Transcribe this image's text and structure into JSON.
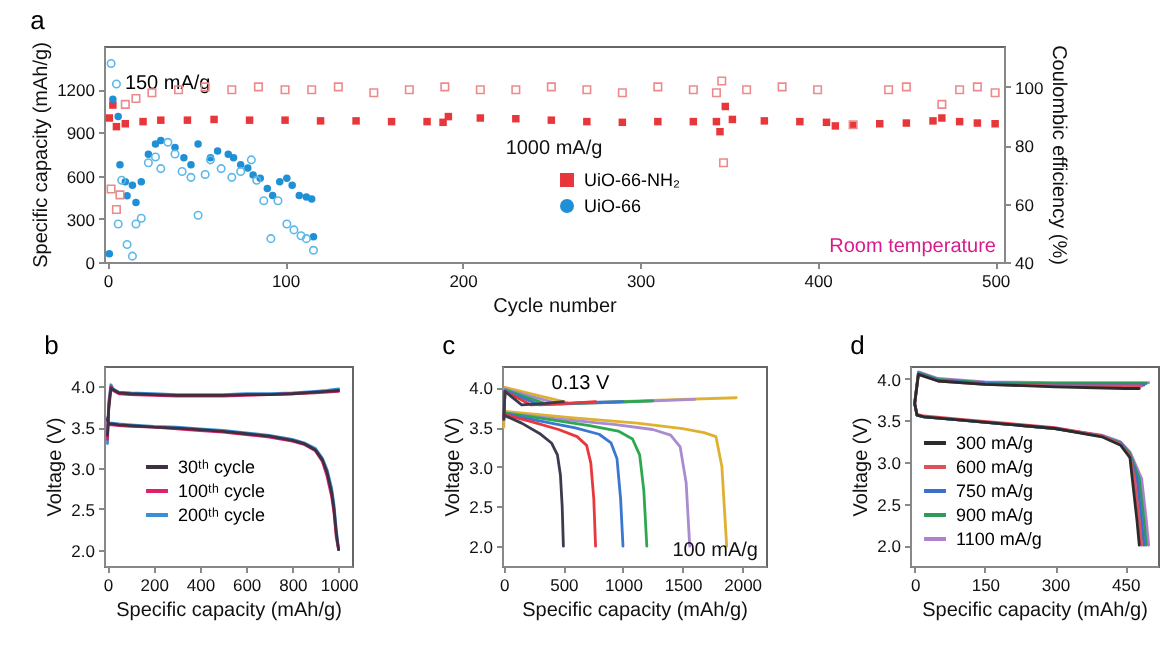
{
  "chart_data": [
    {
      "type": "scatter",
      "title": "a",
      "xlabel": "Cycle number",
      "ylabel": "Specific capacity (mAh/g)",
      "y2label": "Coulombic efficiency (%)",
      "xlim": [
        -2,
        505
      ],
      "xticks": [
        0,
        100,
        200,
        300,
        400,
        500
      ],
      "ylim": [
        0,
        1500
      ],
      "yticks": [
        0,
        300,
        600,
        900,
        1200
      ],
      "y2lim": [
        40,
        114
      ],
      "y2ticks": [
        40,
        60,
        80,
        100
      ],
      "legend": "center",
      "annotations": [
        {
          "text": "150 mA/g",
          "x": 3,
          "y": 1090
        },
        "1000 mA/g",
        "Room temperature"
      ],
      "series": [
        {
          "name": "UiO-66-NH₂",
          "color": "#e8373a",
          "marker": "square",
          "x": [
            1,
            3,
            5,
            10,
            20,
            30,
            45,
            60,
            80,
            100,
            120,
            140,
            160,
            180,
            189,
            192,
            210,
            230,
            250,
            270,
            290,
            310,
            330,
            343,
            345,
            348,
            352,
            370,
            390,
            405,
            410,
            420,
            435,
            450,
            465,
            470,
            480,
            490,
            500
          ],
          "values": [
            1000,
            1090,
            940,
            960,
            975,
            985,
            985,
            990,
            985,
            985,
            980,
            980,
            975,
            975,
            970,
            1010,
            1000,
            995,
            985,
            975,
            970,
            975,
            975,
            975,
            905,
            1080,
            990,
            980,
            975,
            970,
            945,
            950,
            960,
            965,
            980,
            1000,
            975,
            965,
            960
          ]
        },
        {
          "color": "#ec8a8c",
          "marker": "square",
          "axis": "y2",
          "x": [
            2,
            5,
            7,
            10,
            16,
            25,
            40,
            55,
            70,
            85,
            100,
            115,
            130,
            150,
            170,
            190,
            210,
            230,
            250,
            270,
            290,
            310,
            330,
            343,
            346,
            347,
            360,
            380,
            400,
            420,
            440,
            450,
            470,
            480,
            490,
            500
          ],
          "values": [
            65,
            58,
            63,
            94,
            96,
            98,
            99,
            100,
            99,
            100,
            99,
            99,
            100,
            98,
            99,
            100,
            99,
            99,
            100,
            99,
            98,
            100,
            99,
            98,
            102,
            74,
            99,
            100,
            99,
            87,
            99,
            100,
            94,
            99,
            100,
            98
          ]
        },
        {
          "name": "UiO-66",
          "color": "#1f8fd6",
          "marker": "circle",
          "x": [
            1,
            3,
            6,
            7,
            10,
            11,
            14,
            16,
            19,
            23,
            27,
            30,
            38,
            43,
            47,
            51,
            58,
            62,
            68,
            71,
            75,
            79,
            82,
            86,
            90,
            93,
            97,
            101,
            104,
            108,
            112,
            115,
            116
          ],
          "values": [
            57,
            1130,
            1010,
            676,
            557,
            460,
            533,
            414,
            557,
            748,
            819,
            843,
            795,
            724,
            676,
            819,
            724,
            771,
            748,
            724,
            676,
            652,
            605,
            581,
            510,
            462,
            557,
            581,
            533,
            462,
            452,
            438,
            176
          ]
        },
        {
          "color": "#5cb8e8",
          "marker": "circle",
          "axis": "y2",
          "x": [
            2,
            5,
            6,
            8,
            11,
            14,
            16,
            19,
            23,
            27,
            30,
            34,
            38,
            42,
            47,
            51,
            55,
            58,
            64,
            70,
            75,
            81,
            84,
            88,
            92,
            96,
            101,
            105,
            109,
            112,
            116
          ],
          "values": [
            108,
            101,
            53,
            68,
            46,
            42,
            53,
            55,
            74,
            76,
            72,
            81,
            77,
            71,
            69,
            56,
            70,
            75,
            72,
            69,
            71,
            75,
            68,
            61,
            48,
            61,
            53,
            51,
            49,
            48,
            44
          ]
        }
      ]
    },
    {
      "type": "line",
      "title": "b",
      "xlabel": "Specific capacity (mAh/g)",
      "ylabel": "Voltage (V)",
      "xlim": [
        -15,
        1058
      ],
      "xticks": [
        0,
        200,
        400,
        600,
        800,
        1000
      ],
      "ylim": [
        1.8,
        4.25
      ],
      "yticks": [
        {
          "value": 2,
          "label": "2.0"
        },
        2.5,
        {
          "value": 3,
          "label": "3.0"
        },
        3.5,
        {
          "value": 4,
          "label": "4.0"
        }
      ],
      "legend": "bottom left",
      "x": [
        0,
        5,
        15,
        25,
        50,
        100,
        200,
        300,
        400,
        500,
        600,
        700,
        800,
        900,
        950,
        1000,
        null,
        0,
        5,
        10,
        20,
        50,
        100,
        200,
        300,
        400,
        500,
        600,
        700,
        800,
        850,
        900,
        930,
        950,
        970,
        980,
        990,
        1000
      ],
      "series": [
        {
          "name": "30ᵗʰ cycle",
          "color": "#3d3040",
          "values": [
            3.4,
            3.7,
            3.98,
            3.96,
            3.92,
            3.91,
            3.9,
            3.89,
            3.89,
            3.89,
            3.9,
            3.9,
            3.91,
            3.93,
            3.94,
            3.95,
            null,
            3.6,
            3.55,
            3.54,
            3.54,
            3.53,
            3.52,
            3.5,
            3.49,
            3.47,
            3.45,
            3.42,
            3.39,
            3.34,
            3.3,
            3.22,
            3.1,
            2.95,
            2.7,
            2.5,
            2.2,
            2.0
          ]
        },
        {
          "name": "100ᵗʰ cycle",
          "color": "#e0206a",
          "values": [
            3.35,
            3.75,
            4.0,
            3.95,
            3.91,
            3.9,
            3.89,
            3.88,
            3.88,
            3.88,
            3.89,
            3.9,
            3.91,
            3.92,
            3.93,
            3.94,
            null,
            3.58,
            3.54,
            3.53,
            3.53,
            3.52,
            3.51,
            3.5,
            3.48,
            3.46,
            3.44,
            3.41,
            3.38,
            3.33,
            3.29,
            3.21,
            3.08,
            2.9,
            2.65,
            2.45,
            2.15,
            2.0
          ]
        },
        {
          "name": "200ᵗʰ cycle",
          "color": "#3a8fd9",
          "values": [
            3.3,
            3.8,
            4.02,
            3.97,
            3.93,
            3.92,
            3.91,
            3.9,
            3.9,
            3.9,
            3.91,
            3.91,
            3.92,
            3.94,
            3.95,
            3.97,
            null,
            3.62,
            3.56,
            3.55,
            3.55,
            3.54,
            3.53,
            3.51,
            3.5,
            3.48,
            3.46,
            3.43,
            3.4,
            3.35,
            3.31,
            3.24,
            3.12,
            2.98,
            2.75,
            2.55,
            2.25,
            2.0
          ]
        }
      ]
    },
    {
      "type": "line",
      "title": "c",
      "xlabel": "Specific capacity (mAh/g)",
      "ylabel": "Voltage (V)",
      "xlim": [
        -15,
        2200
      ],
      "xticks": [
        0,
        500,
        1000,
        1500,
        2000
      ],
      "ylim": [
        1.75,
        4.27
      ],
      "yticks": [
        {
          "value": 2,
          "label": "2.0"
        },
        2.5,
        {
          "value": 3,
          "label": "3.0"
        },
        3.5,
        {
          "value": 4,
          "label": "4.0"
        }
      ],
      "annotations": [
        {
          "text": "0.13 V",
          "x": 300,
          "y": 3.78
        },
        "100 mA/g"
      ],
      "series": [
        {
          "color": "#3b3b4f",
          "x": [
            0,
            10,
            150,
            350,
            500,
            null,
            0,
            150,
            300,
            400,
            450,
            475,
            490,
            500
          ],
          "values": [
            3.6,
            3.95,
            3.78,
            3.8,
            3.82,
            null,
            3.65,
            3.55,
            3.42,
            3.3,
            3.15,
            2.9,
            2.5,
            2.0
          ]
        },
        {
          "color": "#e8383d",
          "x": [
            0,
            10,
            230,
            540,
            770,
            null,
            0,
            230,
            460,
            615,
            695,
            730,
            755,
            770
          ],
          "values": [
            3.6,
            3.95,
            3.78,
            3.8,
            3.82,
            null,
            3.66,
            3.57,
            3.47,
            3.38,
            3.27,
            3.05,
            2.6,
            2.0
          ]
        },
        {
          "color": "#3a78d0",
          "x": [
            0,
            10,
            300,
            700,
            1000,
            null,
            0,
            300,
            600,
            800,
            900,
            950,
            980,
            1000
          ],
          "values": [
            3.6,
            3.96,
            3.78,
            3.81,
            3.82,
            null,
            3.67,
            3.58,
            3.49,
            3.41,
            3.3,
            3.1,
            2.6,
            2.0
          ]
        },
        {
          "color": "#2ea84f",
          "x": [
            0,
            10,
            360,
            840,
            1250,
            null,
            0,
            360,
            720,
            960,
            1080,
            1140,
            1175,
            1200
          ],
          "values": [
            3.6,
            3.97,
            3.79,
            3.81,
            3.83,
            null,
            3.68,
            3.6,
            3.52,
            3.45,
            3.35,
            3.15,
            2.7,
            2.0
          ]
        },
        {
          "color": "#a98bd0",
          "x": [
            0,
            10,
            470,
            1100,
            1600,
            null,
            0,
            470,
            940,
            1250,
            1400,
            1480,
            1530,
            1560
          ],
          "values": [
            3.6,
            3.98,
            3.79,
            3.82,
            3.85,
            null,
            3.68,
            3.6,
            3.53,
            3.47,
            3.4,
            3.25,
            2.8,
            2.0
          ]
        },
        {
          "color": "#e0b030",
          "x": [
            0,
            10,
            560,
            1310,
            1950,
            null,
            0,
            560,
            1120,
            1500,
            1680,
            1780,
            1830,
            1870
          ],
          "values": [
            3.5,
            4.0,
            3.8,
            3.84,
            3.87,
            null,
            3.7,
            3.62,
            3.55,
            3.48,
            3.43,
            3.38,
            3.0,
            2.0
          ]
        }
      ]
    },
    {
      "type": "line",
      "title": "d",
      "xlabel": "Specific capacity (mAh/g)",
      "ylabel": "Voltage (V)",
      "xlim": [
        -10,
        520
      ],
      "xticks": [
        0,
        150,
        300,
        450
      ],
      "ylim": [
        1.75,
        4.15
      ],
      "yticks": [
        {
          "value": 2,
          "label": "2.0"
        },
        2.5,
        {
          "value": 3,
          "label": "3.0"
        },
        3.5,
        {
          "value": 4,
          "label": "4.0"
        }
      ],
      "legend": "left",
      "series": [
        {
          "name": "300 mA/g",
          "color": "#2b2b2b",
          "x": [
            0,
            8,
            50,
            150,
            300,
            450,
            480,
            null,
            0,
            5,
            20,
            100,
            200,
            300,
            400,
            440,
            460,
            465,
            475,
            480
          ],
          "values": [
            3.7,
            4.05,
            3.97,
            3.93,
            3.9,
            3.88,
            3.88,
            null,
            3.7,
            3.56,
            3.54,
            3.5,
            3.45,
            3.4,
            3.3,
            3.2,
            3.05,
            2.8,
            2.3,
            2.0
          ]
        },
        {
          "name": "600 mA/g",
          "color": "#e0505a",
          "x": [
            0,
            8,
            50,
            150,
            300,
            450,
            485,
            null,
            0,
            5,
            20,
            100,
            200,
            300,
            400,
            440,
            460,
            470,
            480,
            485
          ],
          "values": [
            3.7,
            4.05,
            3.97,
            3.93,
            3.91,
            3.91,
            3.91,
            null,
            3.7,
            3.57,
            3.55,
            3.51,
            3.46,
            3.41,
            3.31,
            3.21,
            3.07,
            2.8,
            2.3,
            2.0
          ]
        },
        {
          "name": "750 mA/g",
          "color": "#3a6fd0",
          "x": [
            0,
            8,
            50,
            150,
            300,
            450,
            490,
            null,
            0,
            5,
            20,
            100,
            200,
            300,
            400,
            440,
            460,
            475,
            485,
            490
          ],
          "values": [
            3.7,
            4.06,
            3.98,
            3.94,
            3.92,
            3.92,
            3.92,
            null,
            3.7,
            3.56,
            3.54,
            3.5,
            3.45,
            3.4,
            3.31,
            3.22,
            3.08,
            2.8,
            2.3,
            2.0
          ]
        },
        {
          "name": "900 mA/g",
          "color": "#2e9a5a",
          "x": [
            0,
            8,
            50,
            150,
            300,
            450,
            495,
            null,
            0,
            5,
            20,
            100,
            200,
            300,
            400,
            440,
            460,
            480,
            490,
            495
          ],
          "values": [
            3.7,
            4.07,
            3.99,
            3.95,
            3.94,
            3.94,
            3.94,
            null,
            3.7,
            3.56,
            3.54,
            3.5,
            3.45,
            3.4,
            3.31,
            3.23,
            3.1,
            2.8,
            2.3,
            2.0
          ]
        },
        {
          "name": "1100 mA/g",
          "color": "#b080d0",
          "x": [
            0,
            8,
            50,
            150,
            300,
            450,
            500,
            null,
            0,
            5,
            20,
            100,
            200,
            300,
            400,
            440,
            460,
            485,
            495,
            500
          ],
          "values": [
            3.7,
            4.08,
            4.0,
            3.96,
            3.95,
            3.95,
            3.95,
            null,
            3.7,
            3.56,
            3.54,
            3.5,
            3.45,
            3.4,
            3.32,
            3.24,
            3.12,
            2.8,
            2.3,
            2.0
          ]
        }
      ]
    }
  ]
}
